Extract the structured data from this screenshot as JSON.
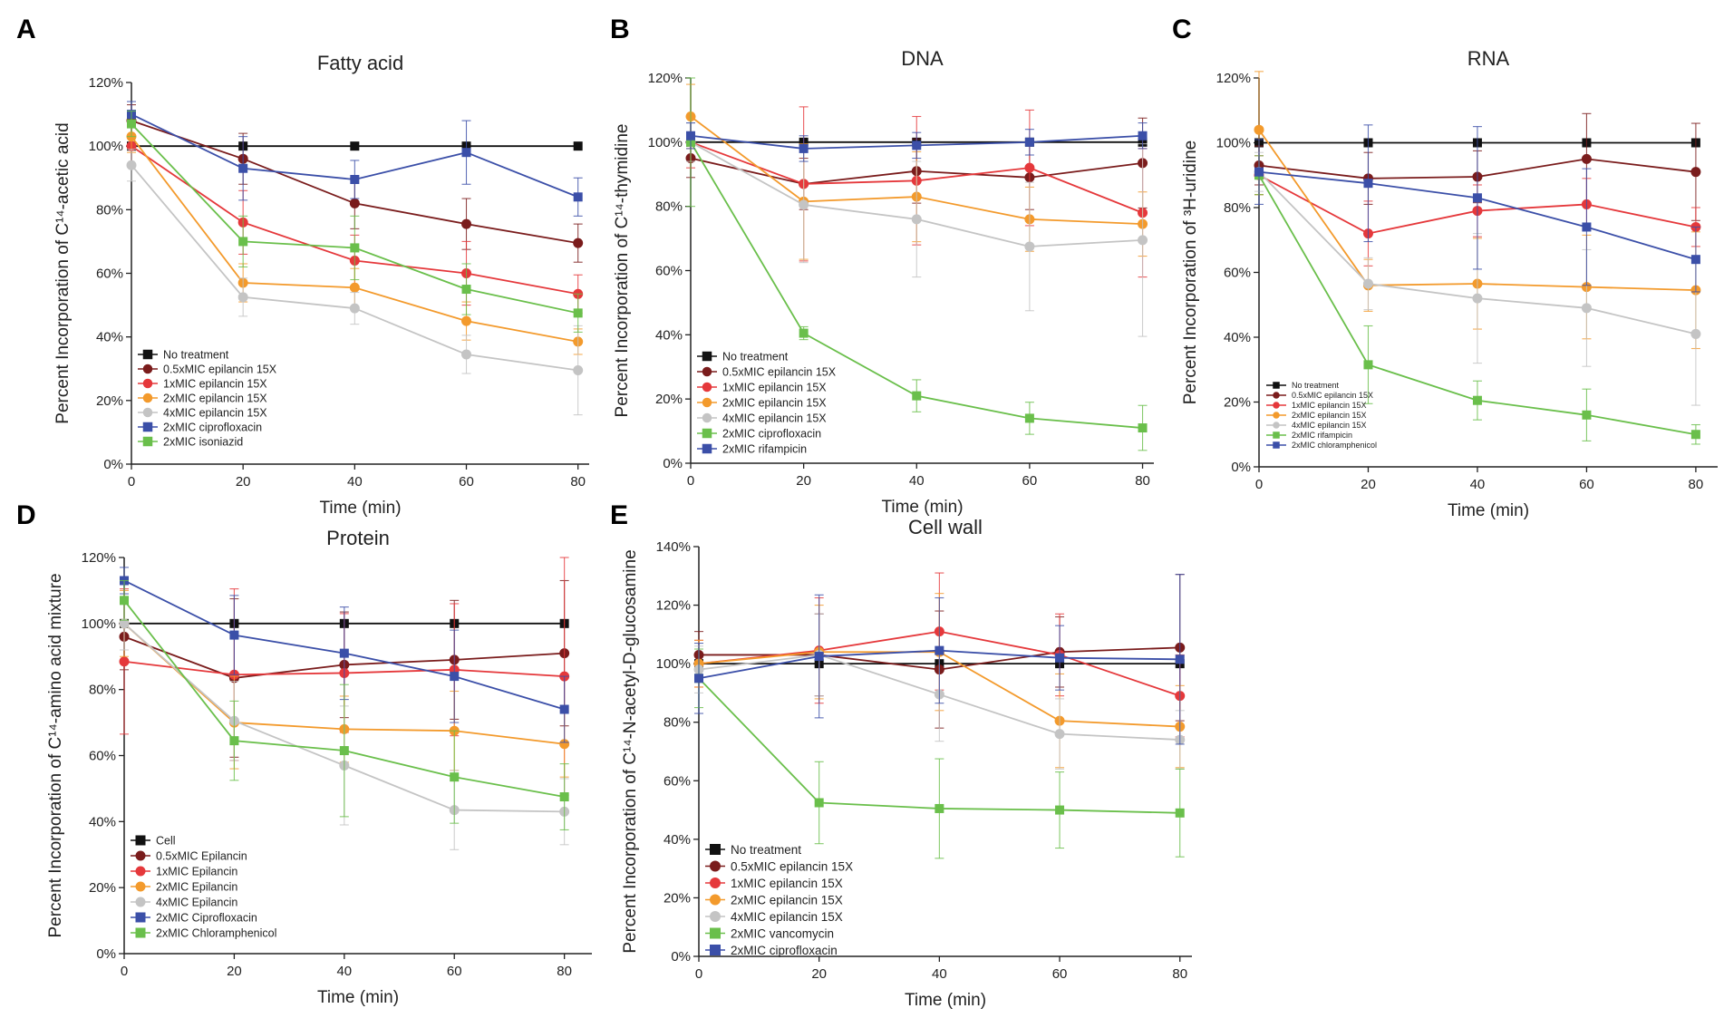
{
  "colors": {
    "none": "#111111",
    "half": "#7a1c1c",
    "one": "#e5383b",
    "two": "#f39a2c",
    "four": "#c4c4c4",
    "green": "#6abf4b",
    "blue": "#3b4fa8"
  },
  "chart_data": [
    {
      "panel_label": "A",
      "type": "line",
      "title": "Fatty acid",
      "xlabel": "Time (min)",
      "ylabel": "Percent Incorporation of C¹⁴-acetic acid",
      "x": [
        0,
        20,
        40,
        60,
        80
      ],
      "xticks": [
        "0",
        "20",
        "40",
        "60",
        "80"
      ],
      "xlim": [
        0,
        82
      ],
      "ylim": [
        0,
        120
      ],
      "yticks": [
        "0%",
        "20%",
        "40%",
        "60%",
        "80%",
        "100%",
        "120%"
      ],
      "legend_position": "bottom-left",
      "series": [
        {
          "name": "No treatment",
          "color_key": "none",
          "marker": "square",
          "values": [
            100,
            100,
            100,
            100,
            100
          ],
          "errors": [
            0,
            0,
            0,
            0,
            0
          ]
        },
        {
          "name": "0.5xMIC epilancin 15X",
          "color_key": "half",
          "marker": "circle",
          "values": [
            108,
            96,
            82,
            75.5,
            69.5
          ],
          "errors": [
            5,
            8,
            8,
            8,
            6
          ]
        },
        {
          "name": "1xMIC epilancin 15X",
          "color_key": "one",
          "marker": "circle",
          "values": [
            100,
            76,
            64,
            60,
            53.5
          ],
          "errors": [
            6,
            10,
            8,
            10,
            6
          ]
        },
        {
          "name": "2xMIC epilancin 15X",
          "color_key": "two",
          "marker": "circle",
          "values": [
            103,
            57,
            55.5,
            45,
            38.5
          ],
          "errors": [
            5,
            6,
            6,
            6,
            4
          ]
        },
        {
          "name": "4xMIC epilancin 15X",
          "color_key": "four",
          "marker": "circle",
          "values": [
            94,
            52.5,
            49,
            34.5,
            29.5
          ],
          "errors": [
            5,
            6,
            5,
            6,
            14
          ]
        },
        {
          "name": "2xMIC ciprofloxacin",
          "color_key": "blue",
          "marker": "square",
          "values": [
            110,
            93,
            89.5,
            98,
            84
          ],
          "errors": [
            4,
            10,
            6,
            10,
            6
          ]
        },
        {
          "name": "2xMIC isoniazid",
          "color_key": "green",
          "marker": "square",
          "values": [
            107,
            70,
            68,
            55,
            47.5
          ],
          "errors": [
            4,
            8,
            10,
            8,
            6
          ]
        }
      ]
    },
    {
      "panel_label": "B",
      "type": "line",
      "title": "DNA",
      "xlabel": "Time (min)",
      "ylabel": "Percent Incorporation of C¹⁴-thymidine",
      "x": [
        0,
        20,
        40,
        60,
        80
      ],
      "xticks": [
        "0",
        "20",
        "40",
        "60",
        "80"
      ],
      "xlim": [
        0,
        82
      ],
      "ylim": [
        0,
        120
      ],
      "yticks": [
        "0%",
        "20%",
        "40%",
        "60%",
        "80%",
        "100%",
        "120%"
      ],
      "legend_position": "bottom-left",
      "series": [
        {
          "name": "No treatment",
          "color_key": "none",
          "marker": "square",
          "values": [
            100,
            100,
            100,
            100,
            100
          ],
          "errors": [
            0,
            0,
            0,
            0,
            0
          ]
        },
        {
          "name": "0.5xMIC epilancin 15X",
          "color_key": "half",
          "marker": "circle",
          "values": [
            95,
            87,
            91,
            89,
            93.5
          ],
          "errors": [
            6,
            8,
            10,
            10,
            14
          ]
        },
        {
          "name": "1xMIC epilancin 15X",
          "color_key": "one",
          "marker": "circle",
          "values": [
            100,
            87,
            88,
            92,
            78
          ],
          "errors": [
            8,
            24,
            20,
            18,
            20
          ]
        },
        {
          "name": "2xMIC epilancin 15X",
          "color_key": "two",
          "marker": "circle",
          "values": [
            108,
            81.5,
            83,
            76,
            74.5
          ],
          "errors": [
            10,
            18,
            14,
            10,
            10
          ]
        },
        {
          "name": "4xMIC epilancin 15X",
          "color_key": "four",
          "marker": "circle",
          "values": [
            100,
            80.5,
            76,
            67.5,
            69.5
          ],
          "errors": [
            6,
            18,
            18,
            20,
            30
          ]
        },
        {
          "name": "2xMIC ciprofloxacin",
          "color_key": "green",
          "marker": "square",
          "values": [
            100,
            40.5,
            21,
            14,
            11
          ],
          "errors": [
            20,
            2,
            5,
            5,
            7
          ]
        },
        {
          "name": "2xMIC rifampicin",
          "color_key": "blue",
          "marker": "square",
          "values": [
            102,
            98,
            99,
            100,
            102
          ],
          "errors": [
            4,
            4,
            4,
            4,
            4
          ]
        }
      ]
    },
    {
      "panel_label": "C",
      "type": "line",
      "title": "RNA",
      "xlabel": "Time (min)",
      "ylabel": "Percent Incorporation of ³H-uridine",
      "x": [
        0,
        20,
        40,
        60,
        80
      ],
      "xticks": [
        "0",
        "20",
        "40",
        "60",
        "80"
      ],
      "xlim": [
        0,
        84
      ],
      "ylim": [
        0,
        120
      ],
      "yticks": [
        "0%",
        "20%",
        "40%",
        "60%",
        "80%",
        "100%",
        "120%"
      ],
      "legend_position": "bottom-left",
      "series": [
        {
          "name": "No treatment",
          "color_key": "none",
          "marker": "square",
          "values": [
            100,
            100,
            100,
            100,
            100
          ],
          "errors": [
            0,
            0,
            0,
            0,
            0
          ]
        },
        {
          "name": "0.5xMIC epilancin 15X",
          "color_key": "half",
          "marker": "circle",
          "values": [
            93,
            89,
            89.5,
            95,
            91
          ],
          "errors": [
            6,
            8,
            8,
            14,
            15
          ]
        },
        {
          "name": "1xMIC epilancin 15X",
          "color_key": "one",
          "marker": "circle",
          "values": [
            90,
            72,
            79,
            81,
            74
          ],
          "errors": [
            6,
            10,
            8,
            8,
            6
          ]
        },
        {
          "name": "2xMIC epilancin 15X",
          "color_key": "two",
          "marker": "circle",
          "values": [
            104,
            56,
            56.5,
            55.5,
            54.5
          ],
          "errors": [
            20,
            8,
            14,
            16,
            18
          ]
        },
        {
          "name": "4xMIC epilancin 15X",
          "color_key": "four",
          "marker": "circle",
          "values": [
            91,
            56.5,
            52,
            49,
            41
          ],
          "errors": [
            6,
            8,
            20,
            18,
            22
          ]
        },
        {
          "name": "2xMIC rifampicin",
          "color_key": "green",
          "marker": "square",
          "values": [
            90,
            31.5,
            20.5,
            16,
            10
          ],
          "errors": [
            6,
            12,
            6,
            8,
            3
          ]
        },
        {
          "name": "2xMIC chloramphenicol",
          "color_key": "blue",
          "marker": "square",
          "values": [
            91,
            87.5,
            83,
            74,
            64
          ],
          "errors": [
            10,
            18,
            22,
            18,
            10
          ]
        }
      ]
    },
    {
      "panel_label": "D",
      "type": "line",
      "title": "Protein",
      "xlabel": "Time (min)",
      "ylabel": "Percent Incorporation of C¹⁴-amino acid mixture",
      "x": [
        0,
        20,
        40,
        60,
        80
      ],
      "xticks": [
        "0",
        "20",
        "40",
        "60",
        "80"
      ],
      "xlim": [
        0,
        85
      ],
      "ylim": [
        0,
        120
      ],
      "yticks": [
        "0%",
        "20%",
        "40%",
        "60%",
        "80%",
        "100%",
        "120%"
      ],
      "legend_position": "bottom-left",
      "series": [
        {
          "name": "Cell",
          "color_key": "none",
          "marker": "square",
          "values": [
            100,
            100,
            100,
            100,
            100
          ],
          "errors": [
            0,
            0,
            0,
            0,
            0
          ]
        },
        {
          "name": "0.5xMIC Epilancin",
          "color_key": "half",
          "marker": "circle",
          "values": [
            96,
            83.5,
            87.5,
            89,
            91
          ],
          "errors": [
            10,
            24,
            16,
            18,
            22
          ]
        },
        {
          "name": "1xMIC Epilancin",
          "color_key": "one",
          "marker": "circle",
          "values": [
            88.5,
            84.5,
            85,
            86,
            84
          ],
          "errors": [
            22,
            26,
            18,
            20,
            36
          ]
        },
        {
          "name": "2xMIC Epilancin",
          "color_key": "two",
          "marker": "circle",
          "values": [
            100,
            70,
            68,
            67.5,
            63.5
          ],
          "errors": [
            10,
            14,
            10,
            12,
            10
          ]
        },
        {
          "name": "4xMIC Epilancin",
          "color_key": "four",
          "marker": "circle",
          "values": [
            100,
            70.5,
            57,
            43.5,
            43
          ],
          "errors": [
            8,
            12,
            18,
            12,
            10
          ]
        },
        {
          "name": "2xMIC Ciprofloxacin",
          "color_key": "blue",
          "marker": "square",
          "values": [
            113,
            96.5,
            91,
            84,
            74
          ],
          "errors": [
            4,
            12,
            14,
            14,
            10
          ]
        },
        {
          "name": "2xMIC Chloramphenicol",
          "color_key": "green",
          "marker": "square",
          "values": [
            107,
            64.5,
            61.5,
            53.5,
            47.5
          ],
          "errors": [
            6,
            12,
            20,
            14,
            10
          ]
        }
      ]
    },
    {
      "panel_label": "E",
      "type": "line",
      "title": "Cell wall",
      "xlabel": "Time (min)",
      "ylabel": "Percent Incorporation of C¹⁴-N-acetyl-D-glucosamine",
      "x": [
        0,
        20,
        40,
        60,
        80
      ],
      "xticks": [
        "0",
        "20",
        "40",
        "60",
        "80"
      ],
      "xlim": [
        0,
        82
      ],
      "ylim": [
        0,
        140
      ],
      "yticks": [
        "0%",
        "20%",
        "40%",
        "60%",
        "80%",
        "100%",
        "120%",
        "140%"
      ],
      "legend_position": "bottom-left",
      "series": [
        {
          "name": "No treatment",
          "color_key": "none",
          "marker": "square",
          "values": [
            100,
            100,
            100,
            100,
            100
          ],
          "errors": [
            0,
            0,
            0,
            0,
            0
          ]
        },
        {
          "name": "0.5xMIC epilancin 15X",
          "color_key": "half",
          "marker": "circle",
          "values": [
            103,
            103,
            98,
            104,
            105.5
          ],
          "errors": [
            8,
            14,
            20,
            12,
            25
          ]
        },
        {
          "name": "1xMIC epilancin 15X",
          "color_key": "one",
          "marker": "circle",
          "values": [
            100,
            104.5,
            111,
            103,
            89
          ],
          "errors": [
            8,
            18,
            20,
            14,
            14
          ]
        },
        {
          "name": "2xMIC epilancin 15X",
          "color_key": "two",
          "marker": "circle",
          "values": [
            100,
            104,
            104,
            80.5,
            78.5
          ],
          "errors": [
            8,
            16,
            20,
            16,
            14
          ]
        },
        {
          "name": "4xMIC epilancin 15X",
          "color_key": "four",
          "marker": "circle",
          "values": [
            98,
            103,
            89.5,
            76,
            74
          ],
          "errors": [
            8,
            14,
            16,
            12,
            10
          ]
        },
        {
          "name": "2xMIC vancomycin",
          "color_key": "green",
          "marker": "square",
          "values": [
            95,
            52.5,
            50.5,
            50,
            49
          ],
          "errors": [
            10,
            14,
            17,
            13,
            15
          ]
        },
        {
          "name": "2xMIC ciprofloxacin",
          "color_key": "blue",
          "marker": "square",
          "values": [
            95,
            102.5,
            104.5,
            102,
            101.5
          ],
          "errors": [
            12,
            21,
            18,
            11,
            29
          ]
        }
      ]
    }
  ]
}
